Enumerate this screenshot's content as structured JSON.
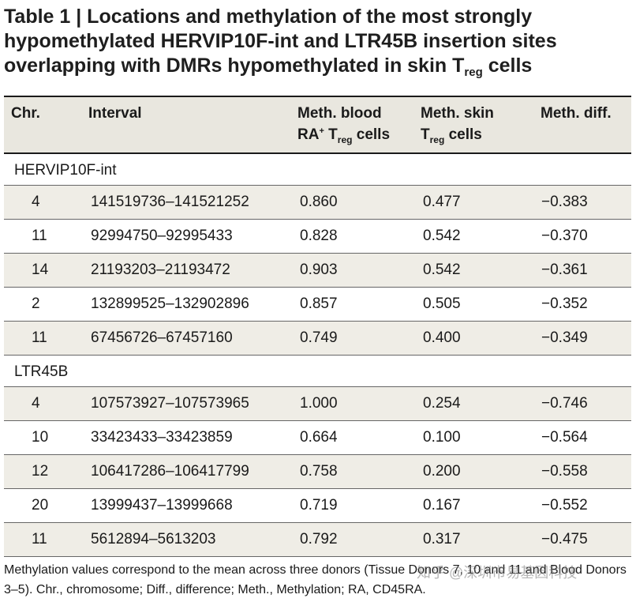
{
  "title": {
    "main": "Table 1 | Locations and methylation of the most strongly hypomethylated HERVIP10F-int and LTR45B insertion sites overlapping with DMRs hypomethylated in skin T",
    "sub": "reg",
    "end": " cells"
  },
  "headers": {
    "chr": "Chr.",
    "interval": "Interval",
    "blood_line1": "Meth. blood",
    "blood_ra": "RA",
    "blood_plus": "+",
    "blood_t": " T",
    "blood_sub": "reg",
    "blood_end": " cells",
    "skin_line1": "Meth. skin",
    "skin_t": "T",
    "skin_sub": "reg",
    "skin_end": " cells",
    "diff": "Meth. diff."
  },
  "groups": [
    {
      "name": "HERVIP10F-int",
      "rows": [
        {
          "chr": "4",
          "interval": "141519736–141521252",
          "blood": "0.860",
          "skin": "0.477",
          "diff": "−0.383"
        },
        {
          "chr": "11",
          "interval": "92994750–92995433",
          "blood": "0.828",
          "skin": "0.542",
          "diff": "−0.370"
        },
        {
          "chr": "14",
          "interval": "21193203–21193472",
          "blood": "0.903",
          "skin": "0.542",
          "diff": "−0.361"
        },
        {
          "chr": "2",
          "interval": "132899525–132902896",
          "blood": "0.857",
          "skin": "0.505",
          "diff": "−0.352"
        },
        {
          "chr": "11",
          "interval": "67456726–67457160",
          "blood": "0.749",
          "skin": "0.400",
          "diff": "−0.349"
        }
      ]
    },
    {
      "name": "LTR45B",
      "rows": [
        {
          "chr": "4",
          "interval": "107573927–107573965",
          "blood": "1.000",
          "skin": "0.254",
          "diff": "−0.746"
        },
        {
          "chr": "10",
          "interval": "33423433–33423859",
          "blood": "0.664",
          "skin": "0.100",
          "diff": "−0.564"
        },
        {
          "chr": "12",
          "interval": "106417286–106417799",
          "blood": "0.758",
          "skin": "0.200",
          "diff": "−0.558"
        },
        {
          "chr": "20",
          "interval": "13999437–13999668",
          "blood": "0.719",
          "skin": "0.167",
          "diff": "−0.552"
        },
        {
          "chr": "11",
          "interval": "5612894–5613203",
          "blood": "0.792",
          "skin": "0.317",
          "diff": "−0.475"
        }
      ]
    }
  ],
  "footnote": "Methylation values correspond to the mean across three donors (Tissue Donors 7, 10 and 11 and Blood Donors 3–5). Chr., chromosome; Diff., difference; Meth., Methylation; RA, CD45RA.",
  "watermark": "知乎 @深圳市易基因科技"
}
